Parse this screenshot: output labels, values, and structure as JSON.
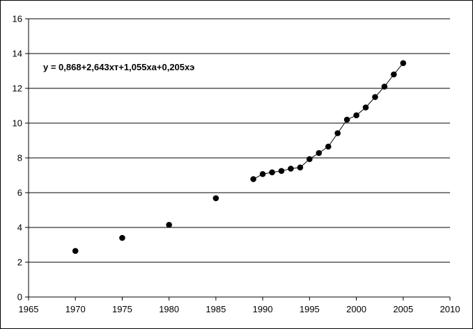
{
  "chart_data": {
    "type": "scatter",
    "annotation": "y = 0,868+2,643хт+1,055ха+0,205хэ",
    "xlim": [
      1965,
      2010
    ],
    "ylim": [
      0,
      16
    ],
    "x_ticks": [
      "1965",
      "1970",
      "1975",
      "1980",
      "1985",
      "1990",
      "1995",
      "2000",
      "2005",
      "2010"
    ],
    "y_ticks": [
      "0",
      "2",
      "4",
      "6",
      "8",
      "10",
      "12",
      "14",
      "16"
    ],
    "x_tick_values": [
      1965,
      1970,
      1975,
      1980,
      1985,
      1990,
      1995,
      2000,
      2005,
      2010
    ],
    "y_tick_values": [
      0,
      2,
      4,
      6,
      8,
      10,
      12,
      14,
      16
    ],
    "grid": "horizontal",
    "legend": "none",
    "series": [
      {
        "points": [
          [
            1970,
            2.65
          ],
          [
            1975,
            3.4
          ],
          [
            1980,
            4.15
          ],
          [
            1985,
            5.68
          ],
          [
            1989,
            6.78
          ],
          [
            1990,
            7.07
          ],
          [
            1991,
            7.17
          ],
          [
            1992,
            7.25
          ],
          [
            1993,
            7.38
          ],
          [
            1994,
            7.45
          ],
          [
            1995,
            7.93
          ],
          [
            1996,
            8.28
          ],
          [
            1997,
            8.65
          ],
          [
            1998,
            9.42
          ],
          [
            1999,
            10.2
          ],
          [
            2000,
            10.45
          ],
          [
            2001,
            10.9
          ],
          [
            2002,
            11.5
          ],
          [
            2003,
            12.1
          ],
          [
            2004,
            12.8
          ],
          [
            2005,
            13.45
          ]
        ],
        "line_from_year": 1989,
        "color": "#000000"
      }
    ]
  }
}
